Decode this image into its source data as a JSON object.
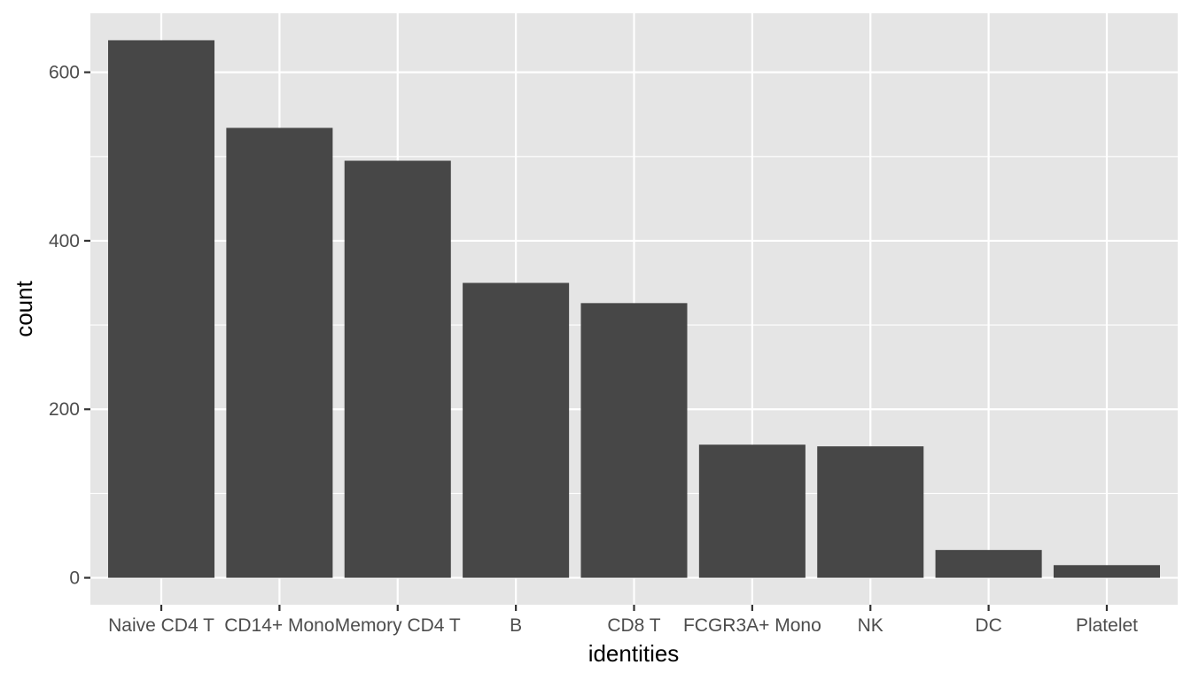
{
  "chart_data": {
    "type": "bar",
    "title": "",
    "xlabel": "identities",
    "ylabel": "count",
    "categories": [
      "Naive CD4 T",
      "CD14+ Mono",
      "Memory CD4 T",
      "B",
      "CD8 T",
      "FCGR3A+ Mono",
      "NK",
      "DC",
      "Platelet"
    ],
    "values": [
      638,
      534,
      495,
      350,
      326,
      158,
      156,
      33,
      15
    ],
    "yticks": [
      0,
      200,
      400,
      600
    ],
    "ylim": [
      -32,
      670
    ],
    "grid": true,
    "bar_color": "#474747",
    "panel_color": "#e5e5e5",
    "grid_color": "#ffffff"
  }
}
